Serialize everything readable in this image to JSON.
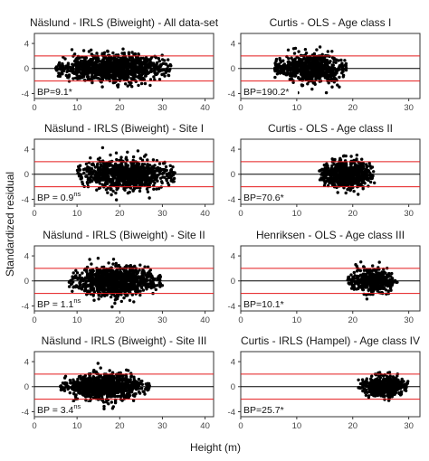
{
  "figure": {
    "ylabel": "Standardized residual",
    "xlabel": "Height (m)"
  },
  "chart_data": [
    {
      "type": "scatter",
      "title": "Näslund - IRLS (Biweight) - All data-set",
      "bp_value": "BP=9.1*",
      "bp_sup": "",
      "xlim": [
        0,
        42
      ],
      "ylim": [
        -4.8,
        5.6
      ],
      "xticks": [
        0,
        10,
        20,
        30,
        40
      ],
      "yticks": [
        -4,
        0,
        4
      ],
      "hlines": {
        "black": [
          0
        ],
        "red": [
          -2,
          2
        ]
      },
      "x_range": [
        5,
        32
      ],
      "y_spread": 1.5,
      "n_points": 1100
    },
    {
      "type": "scatter",
      "title": "Curtis - OLS - Age class I",
      "bp_value": "BP=190.2*",
      "bp_sup": "",
      "xlim": [
        0,
        32
      ],
      "ylim": [
        -4.8,
        5.6
      ],
      "xticks": [
        0,
        10,
        20,
        30
      ],
      "yticks": [
        -4,
        0,
        4
      ],
      "hlines": {
        "black": [
          0
        ],
        "red": [
          -2,
          2
        ]
      },
      "x_range": [
        6,
        19
      ],
      "y_spread": 1.6,
      "n_points": 700
    },
    {
      "type": "scatter",
      "title": "Näslund - IRLS (Biweight) - Site I",
      "bp_value": "BP = 0.9",
      "bp_sup": "ns",
      "xlim": [
        0,
        42
      ],
      "ylim": [
        -4.8,
        5.6
      ],
      "xticks": [
        0,
        10,
        20,
        30,
        40
      ],
      "yticks": [
        -4,
        0,
        4
      ],
      "hlines": {
        "black": [
          0
        ],
        "red": [
          -2,
          2
        ]
      },
      "x_range": [
        10,
        33
      ],
      "y_spread": 1.7,
      "n_points": 900
    },
    {
      "type": "scatter",
      "title": "Curtis - OLS - Age class II",
      "bp_value": "BP=70.6*",
      "bp_sup": "",
      "xlim": [
        0,
        32
      ],
      "ylim": [
        -4.8,
        5.6
      ],
      "xticks": [
        0,
        10,
        20,
        30
      ],
      "yticks": [
        -4,
        0,
        4
      ],
      "hlines": {
        "black": [
          0
        ],
        "red": [
          -2,
          2
        ]
      },
      "x_range": [
        14,
        24
      ],
      "y_spread": 1.5,
      "n_points": 700
    },
    {
      "type": "scatter",
      "title": "Näslund - IRLS (Biweight) - Site II",
      "bp_value": "BP = 1.1",
      "bp_sup": "ns",
      "xlim": [
        0,
        42
      ],
      "ylim": [
        -4.8,
        5.6
      ],
      "xticks": [
        0,
        10,
        20,
        30,
        40
      ],
      "yticks": [
        -4,
        0,
        4
      ],
      "hlines": {
        "black": [
          0
        ],
        "red": [
          -2,
          2
        ]
      },
      "x_range": [
        8,
        30
      ],
      "y_spread": 1.6,
      "n_points": 1000
    },
    {
      "type": "scatter",
      "title": "Henriksen - OLS - Age class III",
      "bp_value": "BP=10.1*",
      "bp_sup": "",
      "xlim": [
        0,
        32
      ],
      "ylim": [
        -4.8,
        5.6
      ],
      "xticks": [
        0,
        10,
        20,
        30
      ],
      "yticks": [
        -4,
        0,
        4
      ],
      "hlines": {
        "black": [
          0
        ],
        "red": [
          -2,
          2
        ]
      },
      "x_range": [
        19,
        28
      ],
      "y_spread": 1.2,
      "n_points": 500
    },
    {
      "type": "scatter",
      "title": "Näslund - IRLS (Biweight) - Site III",
      "bp_value": "BP = 3.4",
      "bp_sup": "ns",
      "xlim": [
        0,
        42
      ],
      "ylim": [
        -4.8,
        5.6
      ],
      "xticks": [
        0,
        10,
        20,
        30,
        40
      ],
      "yticks": [
        -4,
        0,
        4
      ],
      "hlines": {
        "black": [
          0
        ],
        "red": [
          -2,
          2
        ]
      },
      "x_range": [
        6,
        27
      ],
      "y_spread": 1.3,
      "n_points": 900
    },
    {
      "type": "scatter",
      "title": "Curtis - IRLS (Hampel) - Age class IV",
      "bp_value": "BP=25.7*",
      "bp_sup": "",
      "xlim": [
        0,
        32
      ],
      "ylim": [
        -4.8,
        5.6
      ],
      "xticks": [
        0,
        10,
        20,
        30
      ],
      "yticks": [
        -4,
        0,
        4
      ],
      "hlines": {
        "black": [
          0
        ],
        "red": [
          -2,
          2
        ]
      },
      "x_range": [
        21,
        30
      ],
      "y_spread": 1.1,
      "n_points": 500
    }
  ],
  "colors": {
    "points": "#000000",
    "red_line": "#e41a1c",
    "zero_line": "#000000",
    "frame": "#333333",
    "tick_text": "#444444"
  }
}
